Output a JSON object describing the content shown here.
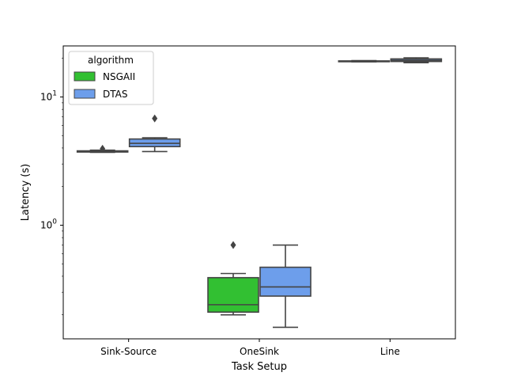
{
  "chart_data": {
    "type": "box",
    "xlabel": "Task Setup",
    "ylabel": "Latency (s)",
    "yscale": "log",
    "ylim": [
      0.13,
      25
    ],
    "y_tick_labels": [
      {
        "value": 1,
        "label": "10^0"
      },
      {
        "value": 10,
        "label": "10^1"
      }
    ],
    "categories": [
      "Sink-Source",
      "OneSink",
      "Line"
    ],
    "legend": {
      "title": "algorithm",
      "placement": "upper-left"
    },
    "series": [
      {
        "name": "NSGAII",
        "color": "#32c032",
        "boxes": [
          {
            "whislo": 3.7,
            "q1": 3.72,
            "med": 3.76,
            "q3": 3.8,
            "whishi": 3.85,
            "fliers": [
              3.95
            ]
          },
          {
            "whislo": 0.2,
            "q1": 0.21,
            "med": 0.24,
            "q3": 0.39,
            "whishi": 0.42,
            "fliers": [
              0.7
            ]
          },
          {
            "whislo": 18.8,
            "q1": 18.9,
            "med": 19.0,
            "q3": 19.1,
            "whishi": 19.2,
            "fliers": []
          }
        ]
      },
      {
        "name": "DTAS",
        "color": "#6d9eeb",
        "boxes": [
          {
            "whislo": 3.75,
            "q1": 4.1,
            "med": 4.35,
            "q3": 4.7,
            "whishi": 4.8,
            "fliers": [
              6.8
            ]
          },
          {
            "whislo": 0.16,
            "q1": 0.28,
            "med": 0.33,
            "q3": 0.47,
            "whishi": 0.7,
            "fliers": []
          },
          {
            "whislo": 18.5,
            "q1": 18.9,
            "med": 19.3,
            "q3": 19.8,
            "whishi": 20.2,
            "fliers": []
          }
        ]
      }
    ]
  }
}
